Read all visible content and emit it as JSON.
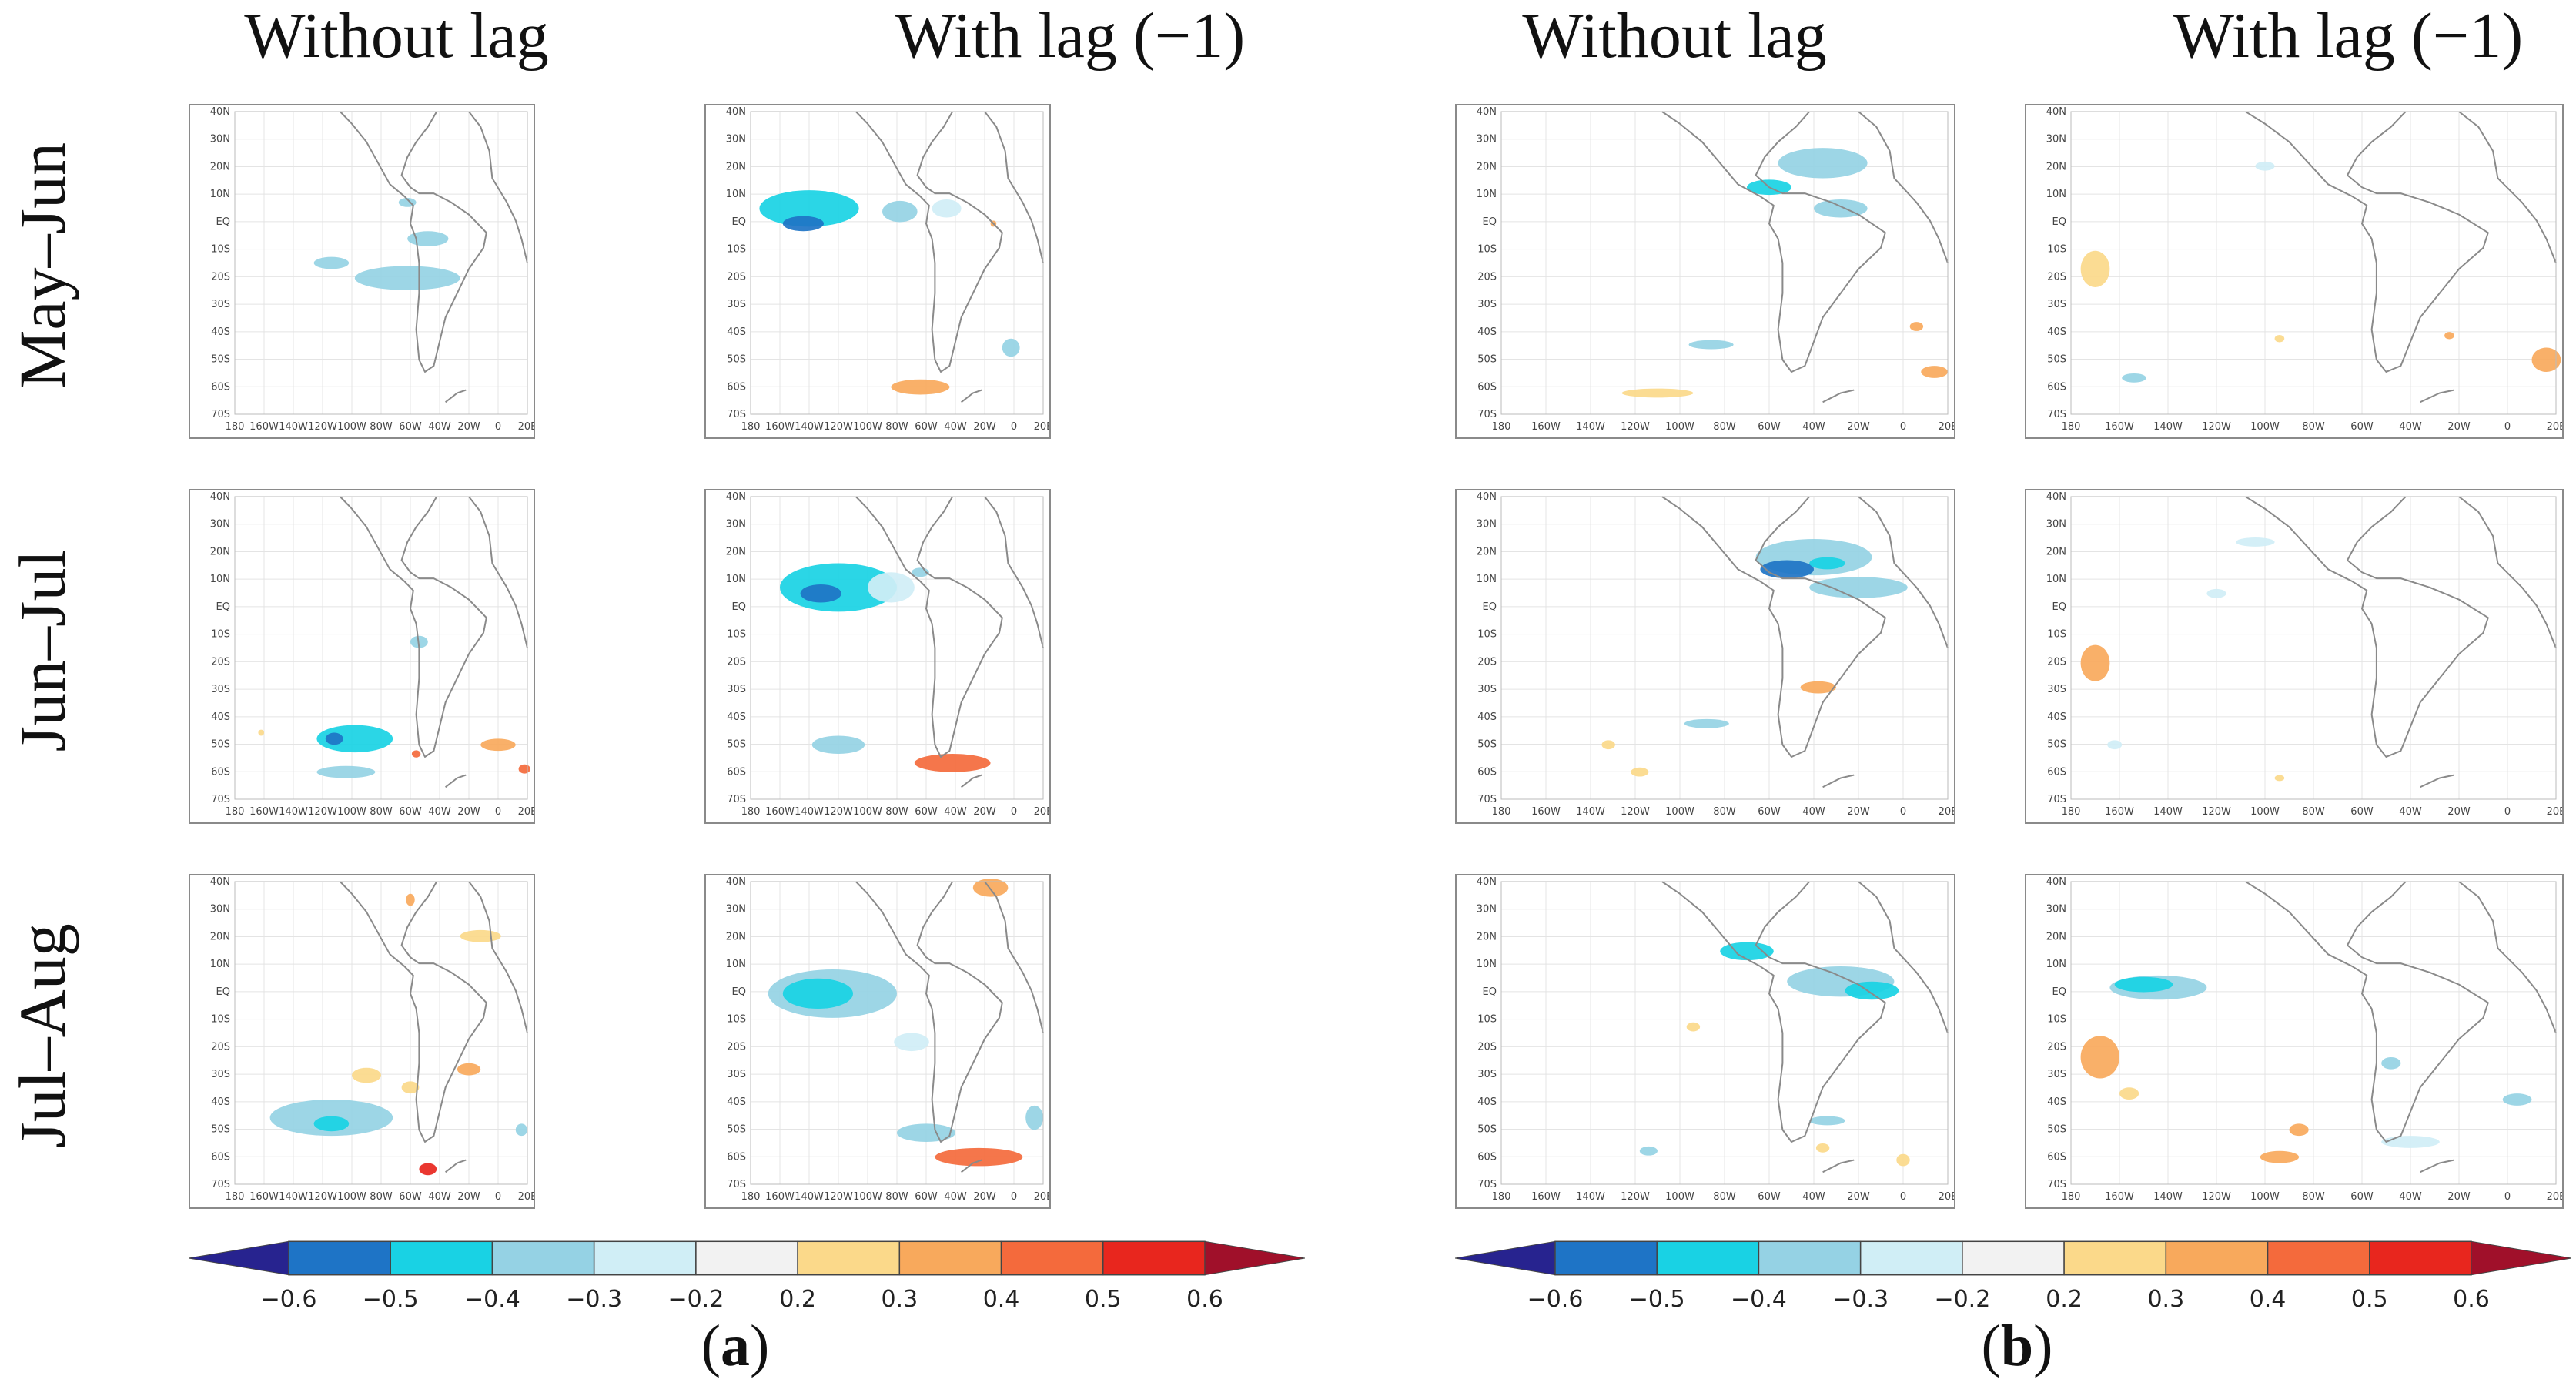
{
  "column_headers": {
    "a_without": "Without lag",
    "a_with": "With lag (−1)",
    "b_without": "Without lag",
    "b_with": "With lag (−1)"
  },
  "row_headers": [
    "May–Jun",
    "Jun–Jul",
    "Jul–Aug"
  ],
  "panel_labels": {
    "a": {
      "open": "(",
      "letter": "a",
      "close": ")"
    },
    "b": {
      "open": "(",
      "letter": "b",
      "close": ")"
    }
  },
  "map_axes": {
    "latitudes": [
      "40N",
      "30N",
      "20N",
      "10N",
      "EQ",
      "10S",
      "20S",
      "30S",
      "40S",
      "50S",
      "60S",
      "70S"
    ],
    "longitudes": [
      "180",
      "160W",
      "140W",
      "120W",
      "100W",
      "80W",
      "60W",
      "40W",
      "20W",
      "0",
      "20E"
    ]
  },
  "legend": {
    "ticks": [
      "−0.6",
      "−0.5",
      "−0.4",
      "−0.3",
      "−0.2",
      "0.2",
      "0.3",
      "0.4",
      "0.5",
      "0.6"
    ],
    "colors": [
      "#27238f",
      "#1e74c6",
      "#19d2e4",
      "#95d2e4",
      "#d0eef6",
      "#f2f2f2",
      "#fbd98a",
      "#f8a95c",
      "#f46a3c",
      "#e8261e",
      "#a0102a"
    ]
  },
  "patches_legend": "Shaded areas: correlation coefficients; colour classes per legend",
  "panels": [
    {
      "id": "a-mayjun-nolag",
      "patches": [
        [
          0.33,
          0.5,
          0.06,
          0.02,
          3
        ],
        [
          0.66,
          0.42,
          0.07,
          0.025,
          3
        ],
        [
          0.59,
          0.55,
          0.18,
          0.04,
          3
        ],
        [
          0.59,
          0.3,
          0.03,
          0.015,
          3
        ]
      ]
    },
    {
      "id": "a-mayjun-lag",
      "patches": [
        [
          0.2,
          0.32,
          0.17,
          0.06,
          2
        ],
        [
          0.18,
          0.37,
          0.07,
          0.025,
          1
        ],
        [
          0.51,
          0.33,
          0.06,
          0.035,
          3
        ],
        [
          0.67,
          0.32,
          0.05,
          0.03,
          4
        ],
        [
          0.58,
          0.91,
          0.1,
          0.025,
          7
        ],
        [
          0.89,
          0.78,
          0.03,
          0.03,
          3
        ],
        [
          0.83,
          0.37,
          0.01,
          0.01,
          7
        ]
      ]
    },
    {
      "id": "a-junjul-nolag",
      "patches": [
        [
          0.41,
          0.8,
          0.13,
          0.045,
          2
        ],
        [
          0.34,
          0.8,
          0.03,
          0.02,
          1
        ],
        [
          0.38,
          0.91,
          0.1,
          0.02,
          3
        ],
        [
          0.63,
          0.48,
          0.03,
          0.02,
          3
        ],
        [
          0.9,
          0.82,
          0.06,
          0.02,
          7
        ],
        [
          0.62,
          0.85,
          0.015,
          0.012,
          8
        ],
        [
          0.99,
          0.9,
          0.02,
          0.015,
          8
        ],
        [
          0.09,
          0.78,
          0.01,
          0.01,
          6
        ]
      ]
    },
    {
      "id": "a-junjul-lag",
      "patches": [
        [
          0.3,
          0.3,
          0.2,
          0.08,
          2
        ],
        [
          0.24,
          0.32,
          0.07,
          0.03,
          1
        ],
        [
          0.48,
          0.3,
          0.08,
          0.05,
          4
        ],
        [
          0.3,
          0.82,
          0.09,
          0.03,
          3
        ],
        [
          0.69,
          0.88,
          0.13,
          0.03,
          8
        ],
        [
          0.58,
          0.25,
          0.03,
          0.015,
          3
        ]
      ]
    },
    {
      "id": "a-julaug-nolag",
      "patches": [
        [
          0.33,
          0.78,
          0.21,
          0.06,
          3
        ],
        [
          0.33,
          0.8,
          0.06,
          0.025,
          2
        ],
        [
          0.6,
          0.68,
          0.03,
          0.02,
          6
        ],
        [
          0.66,
          0.95,
          0.03,
          0.02,
          9
        ],
        [
          0.45,
          0.64,
          0.05,
          0.025,
          6
        ],
        [
          0.8,
          0.62,
          0.04,
          0.02,
          7
        ],
        [
          0.84,
          0.18,
          0.07,
          0.02,
          6
        ],
        [
          0.6,
          0.06,
          0.015,
          0.02,
          7
        ],
        [
          0.98,
          0.82,
          0.02,
          0.02,
          3
        ]
      ]
    },
    {
      "id": "a-julaug-lag",
      "patches": [
        [
          0.28,
          0.37,
          0.22,
          0.08,
          3
        ],
        [
          0.23,
          0.37,
          0.12,
          0.05,
          2
        ],
        [
          0.55,
          0.53,
          0.06,
          0.03,
          4
        ],
        [
          0.6,
          0.83,
          0.1,
          0.03,
          3
        ],
        [
          0.78,
          0.91,
          0.15,
          0.03,
          8
        ],
        [
          0.82,
          0.02,
          0.06,
          0.03,
          7
        ],
        [
          0.97,
          0.78,
          0.03,
          0.04,
          3
        ]
      ]
    },
    {
      "id": "b-mayjun-nolag",
      "patches": [
        [
          0.72,
          0.17,
          0.1,
          0.05,
          3
        ],
        [
          0.6,
          0.25,
          0.05,
          0.025,
          2
        ],
        [
          0.76,
          0.32,
          0.06,
          0.03,
          3
        ],
        [
          0.47,
          0.77,
          0.05,
          0.015,
          3
        ],
        [
          0.35,
          0.93,
          0.08,
          0.015,
          6
        ],
        [
          0.97,
          0.86,
          0.03,
          0.02,
          7
        ],
        [
          0.93,
          0.71,
          0.015,
          0.015,
          7
        ]
      ]
    },
    {
      "id": "b-junjul-nolag",
      "patches": [
        [
          0.7,
          0.2,
          0.13,
          0.06,
          3
        ],
        [
          0.64,
          0.24,
          0.06,
          0.03,
          1
        ],
        [
          0.8,
          0.3,
          0.11,
          0.035,
          3
        ],
        [
          0.73,
          0.22,
          0.04,
          0.02,
          2
        ],
        [
          0.71,
          0.63,
          0.04,
          0.02,
          7
        ],
        [
          0.46,
          0.75,
          0.05,
          0.015,
          3
        ],
        [
          0.24,
          0.82,
          0.015,
          0.015,
          6
        ],
        [
          0.31,
          0.91,
          0.02,
          0.015,
          6
        ]
      ]
    },
    {
      "id": "b-julaug-nolag",
      "patches": [
        [
          0.76,
          0.33,
          0.12,
          0.05,
          3
        ],
        [
          0.55,
          0.23,
          0.06,
          0.03,
          2
        ],
        [
          0.83,
          0.36,
          0.06,
          0.03,
          2
        ],
        [
          0.73,
          0.79,
          0.04,
          0.015,
          3
        ],
        [
          0.9,
          0.92,
          0.015,
          0.02,
          6
        ],
        [
          0.33,
          0.89,
          0.02,
          0.015,
          3
        ],
        [
          0.72,
          0.88,
          0.015,
          0.015,
          6
        ],
        [
          0.43,
          0.48,
          0.015,
          0.015,
          6
        ]
      ]
    },
    {
      "id": "b-mayjun-lag",
      "patches": [
        [
          0.05,
          0.52,
          0.03,
          0.06,
          6
        ],
        [
          0.13,
          0.88,
          0.025,
          0.015,
          3
        ],
        [
          0.43,
          0.75,
          0.01,
          0.012,
          6
        ],
        [
          0.78,
          0.74,
          0.01,
          0.012,
          7
        ],
        [
          0.98,
          0.82,
          0.03,
          0.04,
          7
        ],
        [
          0.4,
          0.18,
          0.02,
          0.015,
          4
        ]
      ]
    },
    {
      "id": "b-junjul-lag",
      "patches": [
        [
          0.05,
          0.55,
          0.03,
          0.06,
          7
        ],
        [
          0.38,
          0.15,
          0.04,
          0.015,
          4
        ],
        [
          0.3,
          0.32,
          0.02,
          0.015,
          4
        ],
        [
          0.09,
          0.82,
          0.015,
          0.015,
          4
        ],
        [
          0.43,
          0.93,
          0.01,
          0.01,
          6
        ]
      ]
    },
    {
      "id": "b-julaug-lag",
      "patches": [
        [
          0.18,
          0.35,
          0.1,
          0.04,
          3
        ],
        [
          0.15,
          0.34,
          0.06,
          0.025,
          2
        ],
        [
          0.06,
          0.58,
          0.04,
          0.07,
          7
        ],
        [
          0.12,
          0.7,
          0.02,
          0.02,
          6
        ],
        [
          0.47,
          0.82,
          0.02,
          0.02,
          7
        ],
        [
          0.43,
          0.91,
          0.04,
          0.02,
          7
        ],
        [
          0.92,
          0.72,
          0.03,
          0.02,
          3
        ],
        [
          0.66,
          0.6,
          0.02,
          0.02,
          3
        ],
        [
          0.7,
          0.86,
          0.06,
          0.02,
          4
        ]
      ]
    }
  ]
}
